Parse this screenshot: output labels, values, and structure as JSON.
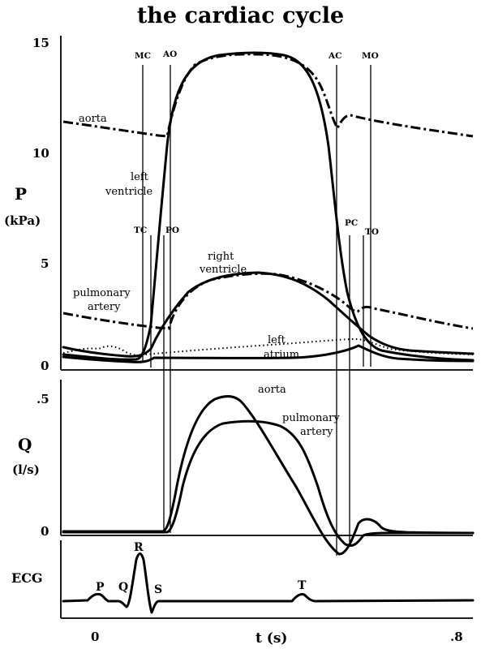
{
  "title": "the cardiac cycle",
  "pressure_panel": {
    "axis_label": "P",
    "axis_unit": "(kPa)",
    "ticks": [
      "15",
      "10",
      "5",
      "0"
    ],
    "event_labels": [
      "MC",
      "AO",
      "AC",
      "MO",
      "TC",
      "PO",
      "PC",
      "TO"
    ],
    "curve_labels": {
      "aorta": "aorta",
      "left_ventricle_1": "left",
      "left_ventricle_2": "ventricle",
      "right_ventricle_1": "right",
      "right_ventricle_2": "ventricle",
      "pulmonary_artery_1": "pulmonary",
      "pulmonary_artery_2": "artery",
      "left_atrium_1": "left",
      "left_atrium_2": "atrium"
    }
  },
  "flow_panel": {
    "axis_label": "Q",
    "axis_unit": "(l/s)",
    "ticks": [
      ".5",
      "0"
    ],
    "curve_labels": {
      "aorta": "aorta",
      "pulmonary_artery_1": "pulmonary",
      "pulmonary_artery_2": "artery"
    }
  },
  "ecg_panel": {
    "axis_label": "ECG",
    "wave_labels": [
      "P",
      "Q",
      "R",
      "S",
      "T"
    ]
  },
  "time_axis": {
    "label": "t (s)",
    "ticks": [
      "0",
      ".8"
    ]
  }
}
